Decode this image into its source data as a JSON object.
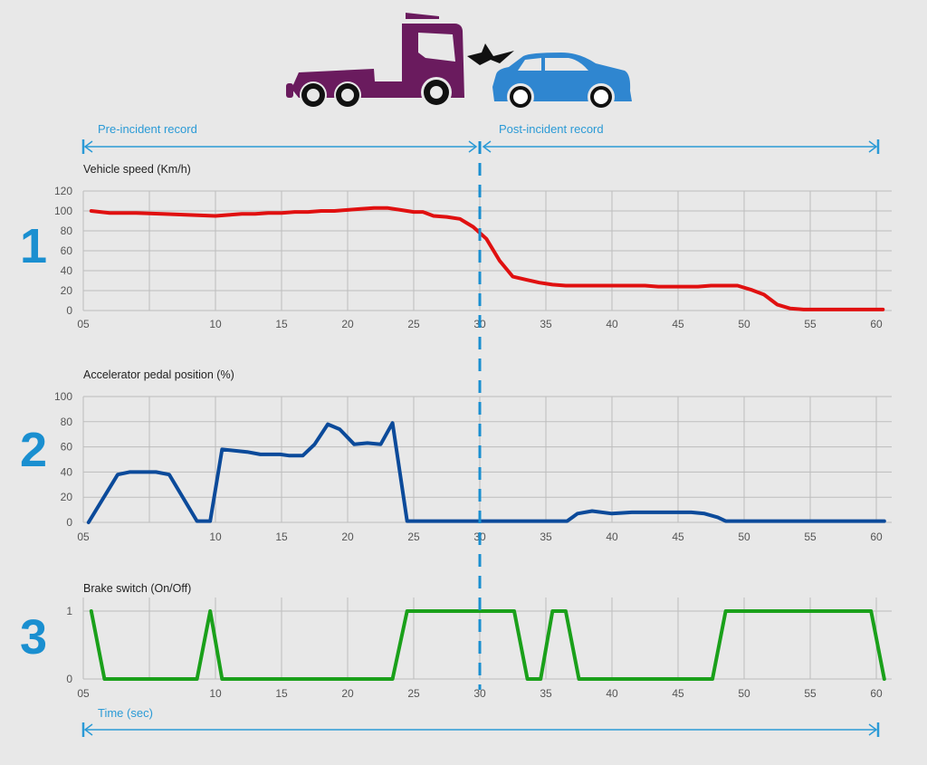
{
  "labels": {
    "pre_incident": "Pre-incident record",
    "post_incident": "Post-incident record",
    "time_axis": "Time (sec)"
  },
  "colors": {
    "background": "#e8e8e8",
    "accent": "#2a9ad6",
    "truck": "#6a1b5e",
    "car": "#2f86d0",
    "speed": "#e01010",
    "accel": "#0b4a9a",
    "brake": "#1aa01a"
  },
  "incident_time": 30,
  "chart_data": [
    {
      "type": "line",
      "panel_number": "1",
      "title": "Vehicle speed (Km/h)",
      "xlabel": "Time (sec)",
      "ylabel": "Vehicle speed (Km/h)",
      "ylim": [
        0,
        120
      ],
      "yticks": [
        "0",
        "20",
        "40",
        "60",
        "80",
        "100",
        "120"
      ],
      "xticks": [
        "05",
        "10",
        "15",
        "20",
        "25",
        "30",
        "35",
        "40",
        "45",
        "50",
        "55",
        "60"
      ],
      "grid": true,
      "series": [
        {
          "name": "Vehicle speed",
          "color": "#e01010",
          "x": [
            5.3,
            6,
            7,
            8,
            9,
            10,
            11,
            12,
            13,
            14,
            15,
            16,
            17,
            18,
            19,
            20,
            21,
            22,
            23,
            24,
            25,
            25.7,
            26.5,
            27.5,
            28.5,
            29.5,
            30.5,
            31.5,
            32.5,
            33.5,
            34.5,
            35.5,
            36.5,
            40,
            42.5,
            43.5,
            46.5,
            47.5,
            49.5,
            50.5,
            51.5,
            52.5,
            53.5,
            54.5,
            60.5
          ],
          "y": [
            100,
            98,
            98,
            97,
            96,
            95,
            96,
            97,
            97,
            98,
            98,
            99,
            99,
            100,
            100,
            101,
            102,
            103,
            103,
            101,
            99,
            99,
            95,
            94,
            92,
            84,
            72,
            50,
            34,
            31,
            28,
            26,
            25,
            25,
            25,
            24,
            24,
            25,
            25,
            21,
            16,
            6,
            2,
            1,
            1
          ]
        }
      ]
    },
    {
      "type": "line",
      "panel_number": "2",
      "title": "Accelerator pedal position (%)",
      "xlabel": "Time (sec)",
      "ylabel": "Accelerator pedal position (%)",
      "ylim": [
        0,
        100
      ],
      "yticks": [
        "0",
        "20",
        "40",
        "60",
        "80",
        "100"
      ],
      "xticks": [
        "05",
        "10",
        "15",
        "20",
        "25",
        "30",
        "35",
        "40",
        "45",
        "50",
        "55",
        "60"
      ],
      "grid": true,
      "series": [
        {
          "name": "Accelerator pedal position",
          "color": "#0b4a9a",
          "x": [
            5.2,
            6.3,
            6.75,
            7.75,
            8.25,
            9.3,
            9.8,
            10.5,
            12.4,
            13.4,
            14.9,
            15.6,
            16.6,
            17.5,
            18.5,
            19.4,
            20.5,
            21.5,
            22.5,
            23.4,
            24.5,
            36.6,
            37.4,
            38.5,
            40,
            41.5,
            46,
            47,
            48,
            48.6,
            60.6
          ],
          "y": [
            0,
            38,
            40,
            40,
            38,
            1,
            1,
            58,
            56,
            54,
            54,
            53,
            53,
            62,
            78,
            74,
            62,
            63,
            62,
            79,
            1,
            1,
            7,
            9,
            7,
            8,
            8,
            7,
            4,
            1,
            1
          ]
        }
      ]
    },
    {
      "type": "line",
      "panel_number": "3",
      "title": "Brake switch (On/Off)",
      "xlabel": "Time (sec)",
      "ylabel": "Brake switch (On/Off)",
      "ylim": [
        0,
        1
      ],
      "yticks": [
        "0",
        "1"
      ],
      "xticks": [
        "05",
        "10",
        "15",
        "20",
        "25",
        "30",
        "35",
        "40",
        "45",
        "50",
        "55",
        "60"
      ],
      "grid": true,
      "series": [
        {
          "name": "Brake switch",
          "color": "#1aa01a",
          "x": [
            5.3,
            5.8,
            9.3,
            9.8,
            10.5,
            23.4,
            24.5,
            32.6,
            33.6,
            34.6,
            35.5,
            36.5,
            37.5,
            47.6,
            48.6,
            59.6,
            60.6
          ],
          "y": [
            1,
            0,
            0,
            1,
            0,
            0,
            1,
            1,
            0,
            0,
            1,
            1,
            0,
            0,
            1,
            1,
            0
          ]
        }
      ]
    }
  ]
}
